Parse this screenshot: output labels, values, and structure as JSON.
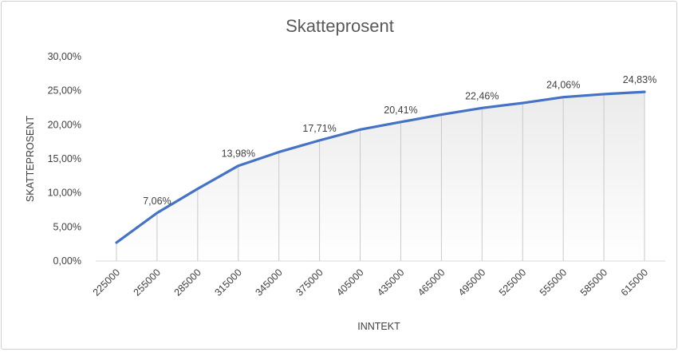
{
  "chart_data": {
    "type": "area",
    "title": "Skatteprosent",
    "xlabel": "INNTEKT",
    "ylabel": "SKATTEPROSENT",
    "categories": [
      "225000",
      "255000",
      "285000",
      "315000",
      "345000",
      "375000",
      "405000",
      "435000",
      "465000",
      "495000",
      "525000",
      "555000",
      "585000",
      "615000"
    ],
    "series": [
      {
        "values": [
          2.7,
          7.06,
          10.6,
          13.98,
          16.0,
          17.71,
          19.3,
          20.41,
          21.5,
          22.46,
          23.2,
          24.06,
          24.5,
          24.83
        ],
        "data_labels": [
          "",
          "7,06%",
          "",
          "13,98%",
          "",
          "17,71%",
          "",
          "20,41%",
          "",
          "22,46%",
          "",
          "24,06%",
          "",
          "24,83%"
        ]
      }
    ],
    "ylim": [
      0,
      30
    ],
    "yticks": [
      "0,00%",
      "5,00%",
      "10,00%",
      "15,00%",
      "20,00%",
      "25,00%",
      "30,00%"
    ],
    "grid": false,
    "legend": "none",
    "colors": {
      "line": "#4472c4",
      "area_top": "#ebebeb",
      "area_bottom": "#ffffff",
      "droplines": "#c9c9c9"
    }
  }
}
